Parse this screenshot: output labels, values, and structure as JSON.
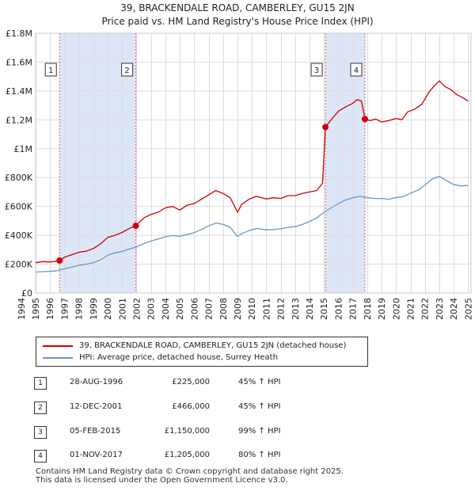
{
  "title_line1": "39, BRACKENDALE ROAD, CAMBERLEY, GU15 2JN",
  "title_line2": "Price paid vs. HM Land Registry's House Price Index (HPI)",
  "chart_data": {
    "type": "line",
    "title": "39, BRACKENDALE ROAD, CAMBERLEY, GU15 2JN — Price paid vs. HM Land Registry's House Price Index (HPI)",
    "xlabel": "",
    "ylabel": "",
    "xlim": [
      1995.0,
      2025.2
    ],
    "ylim": [
      0,
      1800000
    ],
    "yticks": [
      0,
      200000,
      400000,
      600000,
      800000,
      1000000,
      1200000,
      1400000,
      1600000,
      1800000
    ],
    "ytick_labels": [
      "£0",
      "£200K",
      "£400K",
      "£600K",
      "£800K",
      "£1M",
      "£1.2M",
      "£1.4M",
      "£1.6M",
      "£1.8M"
    ],
    "xticks": [
      1994,
      1995,
      1996,
      1997,
      1998,
      1999,
      2000,
      2001,
      2002,
      2003,
      2004,
      2005,
      2006,
      2007,
      2008,
      2009,
      2010,
      2011,
      2012,
      2013,
      2014,
      2015,
      2016,
      2017,
      2018,
      2019,
      2020,
      2021,
      2022,
      2023,
      2024,
      2025
    ],
    "grid": true,
    "series": [
      {
        "name": "39, BRACKENDALE ROAD, CAMBERLEY, GU15 2JN (detached house)",
        "color": "#cc0000",
        "x": [
          1995.0,
          1995.5,
          1996.0,
          1996.5,
          1996.66,
          1997.0,
          1997.5,
          1998.0,
          1998.5,
          1999.0,
          1999.5,
          2000.0,
          2000.5,
          2001.0,
          2001.5,
          2001.95,
          2002.5,
          2003.0,
          2003.5,
          2004.0,
          2004.5,
          2005.0,
          2005.5,
          2006.0,
          2006.5,
          2007.0,
          2007.5,
          2008.0,
          2008.5,
          2009.0,
          2009.3,
          2009.8,
          2010.3,
          2011.0,
          2011.5,
          2012.0,
          2012.5,
          2013.0,
          2013.5,
          2014.0,
          2014.5,
          2014.9,
          2015.1,
          2015.5,
          2016.0,
          2016.5,
          2017.0,
          2017.3,
          2017.6,
          2017.84,
          2018.2,
          2018.6,
          2019.0,
          2019.5,
          2020.0,
          2020.4,
          2020.8,
          2021.3,
          2021.8,
          2022.3,
          2022.7,
          2023.0,
          2023.4,
          2023.8,
          2024.2,
          2024.6,
          2025.0
        ],
        "y": [
          210000,
          218000,
          215000,
          220000,
          225000,
          248000,
          265000,
          282000,
          290000,
          308000,
          340000,
          385000,
          400000,
          420000,
          448000,
          466000,
          520000,
          545000,
          560000,
          590000,
          600000,
          575000,
          608000,
          620000,
          650000,
          680000,
          710000,
          690000,
          660000,
          560000,
          615000,
          650000,
          670000,
          652000,
          660000,
          655000,
          675000,
          675000,
          690000,
          700000,
          710000,
          760000,
          1150000,
          1200000,
          1260000,
          1290000,
          1315000,
          1340000,
          1330000,
          1205000,
          1195000,
          1205000,
          1185000,
          1195000,
          1210000,
          1200000,
          1255000,
          1275000,
          1310000,
          1395000,
          1440000,
          1470000,
          1430000,
          1410000,
          1375000,
          1355000,
          1330000
        ]
      },
      {
        "name": "HPI: Average price, detached house, Surrey Heath",
        "color": "#6a96c8",
        "x": [
          1995.0,
          1995.5,
          1996.0,
          1996.5,
          1997.0,
          1997.5,
          1998.0,
          1998.5,
          1999.0,
          1999.5,
          2000.0,
          2000.5,
          2001.0,
          2001.5,
          2002.0,
          2002.5,
          2003.0,
          2003.5,
          2004.0,
          2004.5,
          2005.0,
          2005.5,
          2006.0,
          2006.5,
          2007.0,
          2007.5,
          2008.0,
          2008.5,
          2009.0,
          2009.3,
          2009.8,
          2010.3,
          2011.0,
          2011.5,
          2012.0,
          2012.5,
          2013.0,
          2013.5,
          2014.0,
          2014.5,
          2015.0,
          2015.5,
          2016.0,
          2016.5,
          2017.0,
          2017.5,
          2018.0,
          2018.5,
          2019.0,
          2019.5,
          2020.0,
          2020.5,
          2021.0,
          2021.5,
          2022.0,
          2022.5,
          2023.0,
          2023.5,
          2024.0,
          2024.5,
          2025.0
        ],
        "y": [
          145000,
          148000,
          150000,
          155000,
          168000,
          180000,
          192000,
          200000,
          210000,
          230000,
          262000,
          278000,
          288000,
          305000,
          320000,
          342000,
          360000,
          375000,
          390000,
          398000,
          393000,
          405000,
          418000,
          440000,
          465000,
          485000,
          475000,
          455000,
          392000,
          412000,
          432000,
          448000,
          438000,
          440000,
          445000,
          455000,
          460000,
          475000,
          495000,
          520000,
          560000,
          590000,
          620000,
          645000,
          660000,
          670000,
          660000,
          655000,
          655000,
          650000,
          662000,
          668000,
          692000,
          712000,
          748000,
          790000,
          808000,
          780000,
          752000,
          742000,
          745000
        ]
      }
    ],
    "sales": [
      {
        "label": "1",
        "date": "28-AUG-1996",
        "x": 1996.66,
        "price": 225000
      },
      {
        "label": "2",
        "date": "12-DEC-2001",
        "x": 2001.95,
        "price": 466000
      },
      {
        "label": "3",
        "date": "05-FEB-2015",
        "x": 2015.1,
        "price": 1150000
      },
      {
        "label": "4",
        "date": "01-NOV-2017",
        "x": 2017.84,
        "price": 1205000
      }
    ],
    "shaded_periods": [
      [
        1996.66,
        2001.95
      ],
      [
        2015.1,
        2017.84
      ]
    ],
    "highlight_color": "#dde6f6",
    "marker_color": "#cc0000",
    "grid_color": "#dddddd",
    "vline_color": "#e06060"
  },
  "legend": {
    "property_label": "39, BRACKENDALE ROAD, CAMBERLEY, GU15 2JN (detached house)",
    "hpi_label": "HPI: Average price, detached house, Surrey Heath"
  },
  "sales_table": [
    {
      "num": "1",
      "date": "28-AUG-1996",
      "price": "£225,000",
      "hpi": "45% ↑ HPI"
    },
    {
      "num": "2",
      "date": "12-DEC-2001",
      "price": "£466,000",
      "hpi": "45% ↑ HPI"
    },
    {
      "num": "3",
      "date": "05-FEB-2015",
      "price": "£1,150,000",
      "hpi": "99% ↑ HPI"
    },
    {
      "num": "4",
      "date": "01-NOV-2017",
      "price": "£1,205,000",
      "hpi": "80% ↑ HPI"
    }
  ],
  "footer_line1": "Contains HM Land Registry data © Crown copyright and database right 2025.",
  "footer_line2": "This data is licensed under the Open Government Licence v3.0."
}
